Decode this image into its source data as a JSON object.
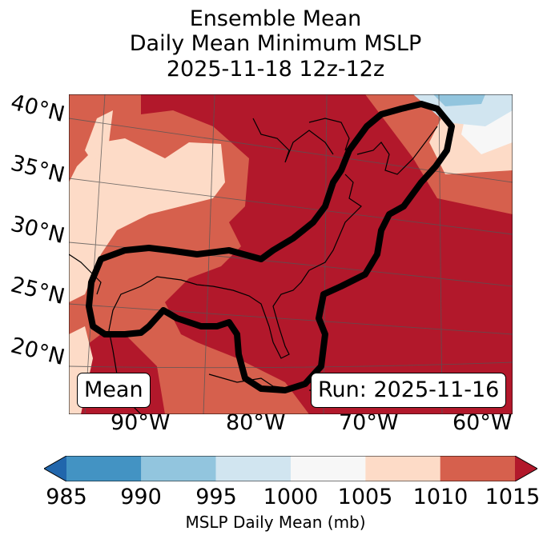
{
  "title": {
    "line1": "Ensemble Mean",
    "line2": "Daily Mean Minimum MSLP",
    "line3": "2025-11-18 12z-12z"
  },
  "map": {
    "lat_labels": [
      "40°N",
      "35°N",
      "30°N",
      "25°N",
      "20°N"
    ],
    "lon_labels": [
      "90°W",
      "80°W",
      "70°W",
      "60°W"
    ],
    "left_box": "Mean",
    "right_box": "Run: 2025-11-16"
  },
  "colorbar": {
    "ticks": [
      "985",
      "990",
      "995",
      "1000",
      "1005",
      "1010",
      "1015"
    ],
    "label": "MSLP Daily Mean (mb)",
    "colors": [
      "#2166ac",
      "#4393c3",
      "#92c5de",
      "#d1e5f0",
      "#f7f7f7",
      "#fddbc7",
      "#d6604d",
      "#b2182b"
    ]
  }
}
